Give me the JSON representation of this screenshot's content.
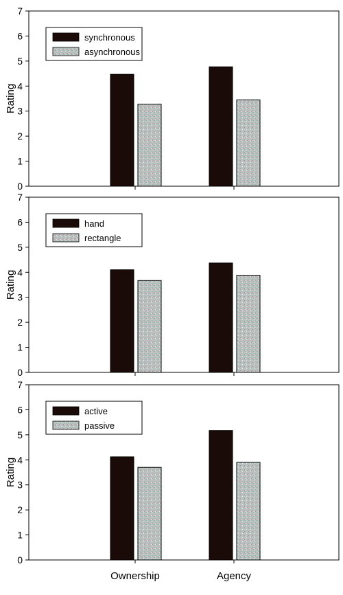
{
  "chart_data": [
    {
      "type": "bar",
      "categories": [
        "Ownership",
        "Agency"
      ],
      "series": [
        {
          "name": "synchronous",
          "values": [
            4.47,
            4.77
          ]
        },
        {
          "name": "asynchronous",
          "values": [
            3.28,
            3.45
          ]
        }
      ],
      "xlabel": "",
      "ylabel": "Rating",
      "ylim": [
        0,
        7
      ],
      "yticks": [
        "0",
        "1",
        "2",
        "3",
        "4",
        "5",
        "6",
        "7"
      ],
      "legend": "top-left",
      "grid": false
    },
    {
      "type": "bar",
      "categories": [
        "Ownership",
        "Agency"
      ],
      "series": [
        {
          "name": "hand",
          "values": [
            4.1,
            4.37
          ]
        },
        {
          "name": "rectangle",
          "values": [
            3.67,
            3.88
          ]
        }
      ],
      "xlabel": "",
      "ylabel": "Rating",
      "ylim": [
        0,
        7
      ],
      "yticks": [
        "0",
        "1",
        "2",
        "3",
        "4",
        "5",
        "6",
        "7"
      ],
      "legend": "top-left",
      "grid": false
    },
    {
      "type": "bar",
      "categories": [
        "Ownership",
        "Agency"
      ],
      "series": [
        {
          "name": "active",
          "values": [
            4.12,
            5.17
          ]
        },
        {
          "name": "passive",
          "values": [
            3.7,
            3.9
          ]
        }
      ],
      "xlabel": "",
      "ylabel": "Rating",
      "ylim": [
        0,
        7
      ],
      "yticks": [
        "0",
        "1",
        "2",
        "3",
        "4",
        "5",
        "6",
        "7"
      ],
      "legend": "top-left",
      "grid": false
    }
  ],
  "colors": {
    "series_1": "#1a0a08",
    "series_2_base": "#b9c3c1",
    "series_2_speckle_a": "#d48a88",
    "series_2_speckle_b": "#7fb3b0",
    "axis": "#000000",
    "background": "#ffffff"
  }
}
